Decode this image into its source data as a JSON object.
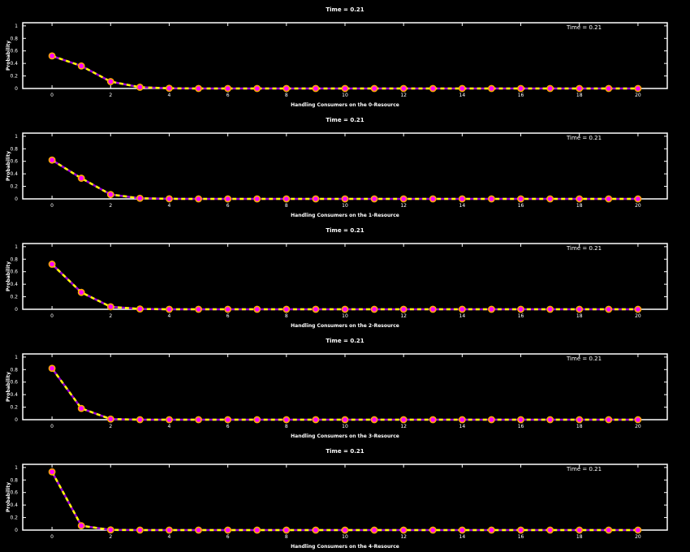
{
  "colors": {
    "background": "#000000",
    "axis": "#ffffff",
    "line_solid": "#9a00d8",
    "line_dashed": "#ffff00",
    "marker_fill": "#ff00ff",
    "marker_ring": "#ffaa00"
  },
  "chart_data": [
    {
      "type": "line",
      "title": "Time =  0.21",
      "legend": "Time =  0.21",
      "legend_position": "top-right",
      "xlabel": "Handling Consumers on the 0-Resource",
      "ylabel": "Probability",
      "xlim": [
        -1,
        21
      ],
      "ylim": [
        0,
        1.05
      ],
      "xticks": [
        "0",
        "2",
        "4",
        "6",
        "8",
        "10",
        "12",
        "14",
        "16",
        "18",
        "20"
      ],
      "yticks": [
        "0",
        "0.2",
        "0.4",
        "0.6",
        "0.8",
        "1"
      ],
      "x": [
        0,
        1,
        2,
        3,
        4,
        5,
        6,
        7,
        8,
        9,
        10,
        11,
        12,
        13,
        14,
        15,
        16,
        17,
        18,
        19,
        20
      ],
      "values": [
        0.52,
        0.36,
        0.11,
        0.02,
        0.003,
        0,
        0,
        0,
        0,
        0,
        0,
        0,
        0,
        0,
        0,
        0,
        0,
        0,
        0,
        0,
        0
      ]
    },
    {
      "type": "line",
      "title": "Time =  0.21",
      "legend": "Time =  0.21",
      "legend_position": "top-right",
      "xlabel": "Handling Consumers on the 1-Resource",
      "ylabel": "Probability",
      "xlim": [
        -1,
        21
      ],
      "ylim": [
        0,
        1.05
      ],
      "xticks": [
        "0",
        "2",
        "4",
        "6",
        "8",
        "10",
        "12",
        "14",
        "16",
        "18",
        "20"
      ],
      "yticks": [
        "0",
        "0.2",
        "0.4",
        "0.6",
        "0.8",
        "1"
      ],
      "x": [
        0,
        1,
        2,
        3,
        4,
        5,
        6,
        7,
        8,
        9,
        10,
        11,
        12,
        13,
        14,
        15,
        16,
        17,
        18,
        19,
        20
      ],
      "values": [
        0.62,
        0.33,
        0.07,
        0.01,
        0.001,
        0,
        0,
        0,
        0,
        0,
        0,
        0,
        0,
        0,
        0,
        0,
        0,
        0,
        0,
        0,
        0
      ]
    },
    {
      "type": "line",
      "title": "Time =  0.21",
      "legend": "Time =  0.21",
      "legend_position": "top-right",
      "xlabel": "Handling Consumers on the 2-Resource",
      "ylabel": "Probability",
      "xlim": [
        -1,
        21
      ],
      "ylim": [
        0,
        1.05
      ],
      "xticks": [
        "0",
        "2",
        "4",
        "6",
        "8",
        "10",
        "12",
        "14",
        "16",
        "18",
        "20"
      ],
      "yticks": [
        "0",
        "0.2",
        "0.4",
        "0.6",
        "0.8",
        "1"
      ],
      "x": [
        0,
        1,
        2,
        3,
        4,
        5,
        6,
        7,
        8,
        9,
        10,
        11,
        12,
        13,
        14,
        15,
        16,
        17,
        18,
        19,
        20
      ],
      "values": [
        0.72,
        0.27,
        0.04,
        0.005,
        0,
        0,
        0,
        0,
        0,
        0,
        0,
        0,
        0,
        0,
        0,
        0,
        0,
        0,
        0,
        0,
        0
      ]
    },
    {
      "type": "line",
      "title": "Time =  0.21",
      "legend": "Time =  0.21",
      "legend_position": "top-right",
      "xlabel": "Handling Consumers on the 3-Resource",
      "ylabel": "Probability",
      "xlim": [
        -1,
        21
      ],
      "ylim": [
        0,
        1.05
      ],
      "xticks": [
        "0",
        "2",
        "4",
        "6",
        "8",
        "10",
        "12",
        "14",
        "16",
        "18",
        "20"
      ],
      "yticks": [
        "0",
        "0.2",
        "0.4",
        "0.6",
        "0.8",
        "1"
      ],
      "x": [
        0,
        1,
        2,
        3,
        4,
        5,
        6,
        7,
        8,
        9,
        10,
        11,
        12,
        13,
        14,
        15,
        16,
        17,
        18,
        19,
        20
      ],
      "values": [
        0.82,
        0.18,
        0.01,
        0,
        0,
        0,
        0,
        0,
        0,
        0,
        0,
        0,
        0,
        0,
        0,
        0,
        0,
        0,
        0,
        0,
        0
      ]
    },
    {
      "type": "line",
      "title": "Time =  0.21",
      "legend": "Time =  0.21",
      "legend_position": "top-right",
      "xlabel": "Handling Consumers on the 4-Resource",
      "ylabel": "Probability",
      "xlim": [
        -1,
        21
      ],
      "ylim": [
        0,
        1.05
      ],
      "xticks": [
        "0",
        "2",
        "4",
        "6",
        "8",
        "10",
        "12",
        "14",
        "16",
        "18",
        "20"
      ],
      "yticks": [
        "0",
        "0.2",
        "0.4",
        "0.6",
        "0.8",
        "1"
      ],
      "x": [
        0,
        1,
        2,
        3,
        4,
        5,
        6,
        7,
        8,
        9,
        10,
        11,
        12,
        13,
        14,
        15,
        16,
        17,
        18,
        19,
        20
      ],
      "values": [
        0.93,
        0.07,
        0.003,
        0,
        0,
        0,
        0,
        0,
        0,
        0,
        0,
        0,
        0,
        0,
        0,
        0,
        0,
        0,
        0,
        0,
        0
      ]
    }
  ]
}
